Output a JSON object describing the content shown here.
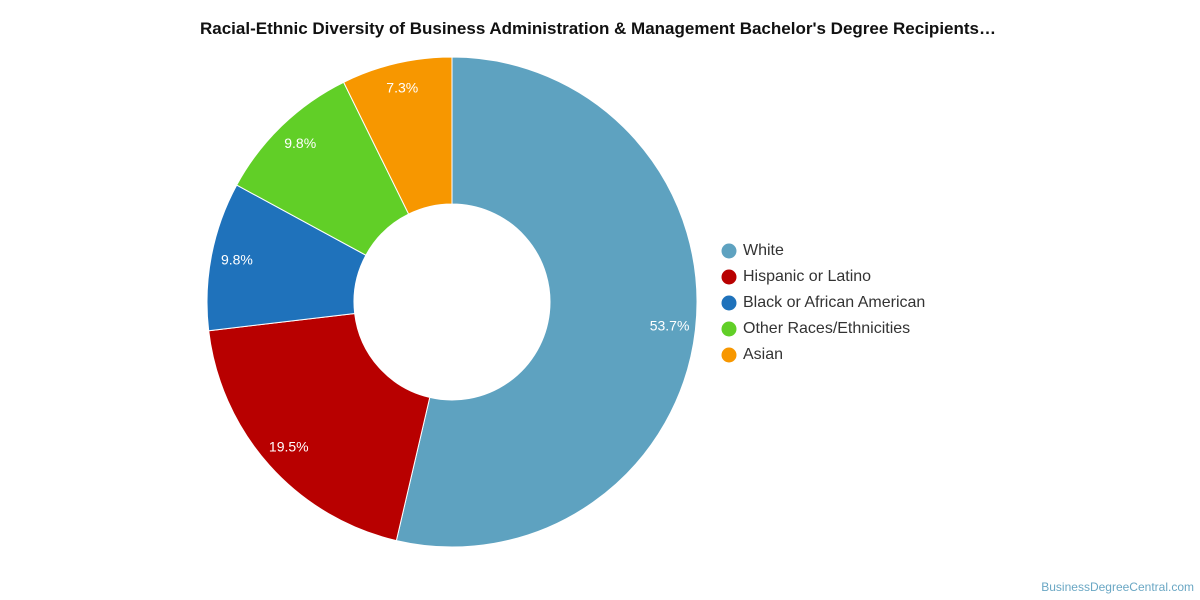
{
  "chart_data": {
    "type": "pie",
    "donut": true,
    "title": "Racial-Ethnic Diversity of Business Administration & Management Bachelor's Degree Recipients…",
    "legend_position": "right",
    "series": [
      {
        "name": "White",
        "value": 53.7,
        "label": "53.7%",
        "color": "#5ea2c0"
      },
      {
        "name": "Hispanic or Latino",
        "value": 19.5,
        "label": "19.5%",
        "color": "#b80000"
      },
      {
        "name": "Black or African American",
        "value": 9.8,
        "label": "9.8%",
        "color": "#1f72bb"
      },
      {
        "name": "Other Races/Ethnicities",
        "value": 9.8,
        "label": "9.8%",
        "color": "#61cf27"
      },
      {
        "name": "Asian",
        "value": 7.3,
        "label": "7.3%",
        "color": "#f79700"
      }
    ]
  },
  "credit": "BusinessDegreeCentral.com"
}
